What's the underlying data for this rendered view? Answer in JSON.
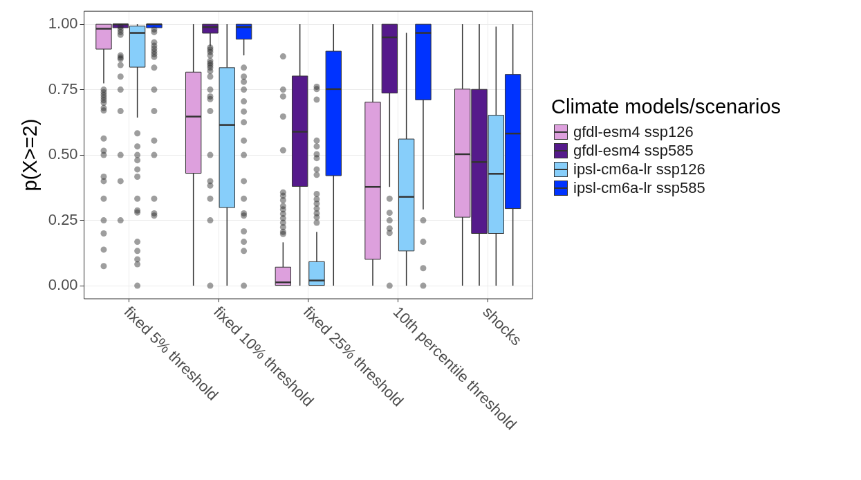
{
  "chart_data": {
    "type": "box",
    "ylabel": "p(X>=2)",
    "legend_title": "Climate models/scenarios",
    "legend": "right",
    "grid": true,
    "categories": [
      "fixed 5% threshold",
      "fixed 10% threshold",
      "fixed 25% threshold",
      "10th percentile threshold",
      "shocks"
    ],
    "ylim": [
      -0.05,
      1.05
    ],
    "yticks": [
      {
        "value": 0,
        "label": "0.00"
      },
      {
        "value": 0.25,
        "label": "0.25"
      },
      {
        "value": 0.5,
        "label": "0.50"
      },
      {
        "value": 0.75,
        "label": "0.75"
      },
      {
        "value": 1,
        "label": "1.00"
      }
    ],
    "series": [
      {
        "name": "gfdl-esm4 ssp126",
        "color": "#dda0dd",
        "boxes": [
          {
            "low": 0.774,
            "q1": 0.905,
            "median": 0.983,
            "q3": 1,
            "high": 1,
            "outliers": [
              0.75,
              0.74,
              0.73,
              0.72,
              0.71,
              0.7,
              0.68,
              0.67,
              0.563,
              0.516,
              0.5,
              0.417,
              0.4,
              0.333,
              0.25,
              0.2,
              0.138,
              0.075
            ]
          },
          {
            "low": 0,
            "q1": 0.43,
            "median": 0.647,
            "q3": 0.817,
            "high": 1
          },
          {
            "low": 0,
            "q1": 0,
            "median": 0.013,
            "q3": 0.071,
            "high": 0.166,
            "outliers": [
              0.877,
              0.75,
              0.724,
              0.647,
              0.518,
              0.357,
              0.344,
              0.327,
              0.305,
              0.292,
              0.275,
              0.258,
              0.241,
              0.224,
              0.206,
              0.198
            ]
          },
          {
            "low": 0,
            "q1": 0.101,
            "median": 0.378,
            "q3": 0.702,
            "high": 1
          },
          {
            "low": 0,
            "q1": 0.262,
            "median": 0.503,
            "q3": 0.752,
            "high": 1
          }
        ]
      },
      {
        "name": "gfdl-esm4 ssp585",
        "color": "#551a8b",
        "boxes": [
          {
            "low": 1,
            "q1": 1,
            "median": 1,
            "q3": 1,
            "high": 1,
            "outliers": [
              0.99,
              0.98,
              0.97,
              0.96,
              0.881,
              0.873,
              0.867,
              0.844,
              0.8,
              0.75,
              0.668,
              0.5,
              0.4,
              0.25
            ]
          },
          {
            "low": 0.916,
            "q1": 0.966,
            "median": 0.989,
            "q3": 1,
            "high": 1,
            "outliers": [
              0.911,
              0.903,
              0.894,
              0.881,
              0.86,
              0.851,
              0.843,
              0.834,
              0.821,
              0.8,
              0.75,
              0.724,
              0.714,
              0.668,
              0.5,
              0.4,
              0.383,
              0.333,
              0.25,
              0
            ]
          },
          {
            "low": 0,
            "q1": 0.38,
            "median": 0.589,
            "q3": 0.802,
            "high": 1
          },
          {
            "low": 0.378,
            "q1": 0.737,
            "median": 0.95,
            "q3": 1,
            "high": 1,
            "outliers": [
              0.333,
              0.279,
              0.25,
              0.219,
              0.202,
              0
            ]
          },
          {
            "low": 0,
            "q1": 0.2,
            "median": 0.473,
            "q3": 0.751,
            "high": 1
          }
        ]
      },
      {
        "name": "ipsl-cm6a-lr ssp126",
        "color": "#87cefa",
        "boxes": [
          {
            "low": 0.643,
            "q1": 0.836,
            "median": 0.967,
            "q3": 0.993,
            "high": 1,
            "outliers": [
              0.583,
              0.533,
              0.5,
              0.48,
              0.445,
              0.417,
              0.333,
              0.288,
              0.28,
              0.168,
              0.133,
              0.101,
              0.082,
              0
            ]
          },
          {
            "low": 0,
            "q1": 0.299,
            "median": 0.615,
            "q3": 0.834,
            "high": 1
          },
          {
            "low": 0,
            "q1": 0,
            "median": 0.02,
            "q3": 0.092,
            "high": 0.206,
            "outliers": [
              0.761,
              0.752,
              0.712,
              0.555,
              0.533,
              0.503,
              0.488,
              0.445,
              0.424,
              0.351,
              0.331,
              0.314,
              0.295,
              0.277,
              0.262,
              0.241
            ]
          },
          {
            "low": 0,
            "q1": 0.133,
            "median": 0.34,
            "q3": 0.561,
            "high": 0.967
          },
          {
            "low": 0,
            "q1": 0.2,
            "median": 0.428,
            "q3": 0.652,
            "high": 0.991
          }
        ]
      },
      {
        "name": "ipsl-cm6a-lr ssp585",
        "color": "#0033ff",
        "boxes": [
          {
            "low": 1,
            "q1": 1,
            "median": 1,
            "q3": 1,
            "high": 1,
            "outliers": [
              0.98,
              0.97,
              0.931,
              0.918,
              0.907,
              0.896,
              0.886,
              0.875,
              0.834,
              0.75,
              0.668,
              0.555,
              0.5,
              0.333,
              0.277,
              0.268
            ]
          },
          {
            "low": 0.881,
            "q1": 0.943,
            "median": 0.989,
            "q3": 1,
            "high": 1,
            "outliers": [
              0.834,
              0.8,
              0.78,
              0.75,
              0.705,
              0.666,
              0.625,
              0.555,
              0.5,
              0.4,
              0.333,
              0.277,
              0.268,
              0.208,
              0.168,
              0.133,
              0
            ]
          },
          {
            "low": 0,
            "q1": 0.421,
            "median": 0.752,
            "q3": 0.897,
            "high": 1
          },
          {
            "low": 0.292,
            "q1": 0.711,
            "median": 0.967,
            "q3": 1,
            "high": 1,
            "outliers": [
              0.25,
              0.168,
              0.067,
              0
            ]
          },
          {
            "low": 0,
            "q1": 0.295,
            "median": 0.582,
            "q3": 0.808,
            "high": 1
          }
        ]
      }
    ]
  }
}
